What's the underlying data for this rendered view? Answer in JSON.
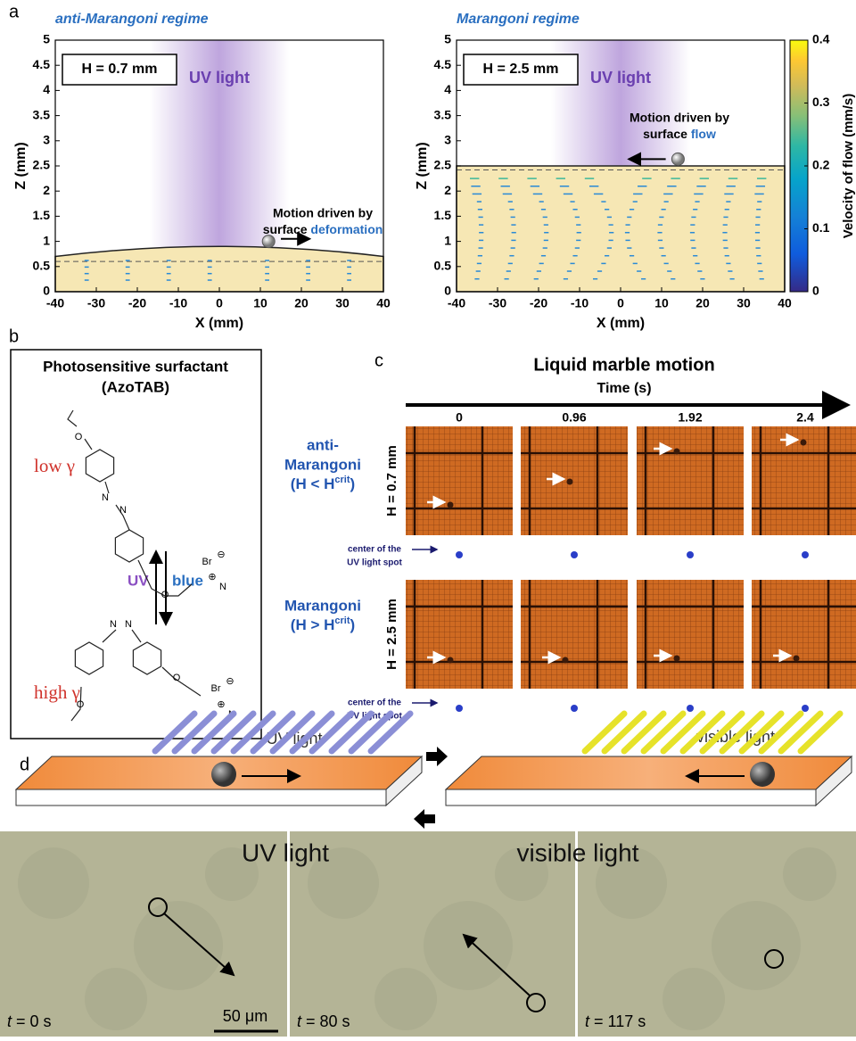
{
  "panel_a": {
    "letter": "a",
    "left": {
      "title": "anti-Marangoni regime",
      "box": "H = 0.7 mm",
      "light": "UV light",
      "note_line1": "Motion driven by",
      "note_line2a": "surface",
      "note_line2b": "deformation",
      "xlabel": "X (mm)",
      "ylabel": "Z (mm)",
      "xlim": [
        -40,
        40
      ],
      "ylim": [
        0,
        5
      ],
      "xticks": [
        -40,
        -30,
        -20,
        -10,
        0,
        10,
        20,
        30,
        40
      ],
      "yticks": [
        0,
        0.5,
        1,
        1.5,
        2,
        2.5,
        3,
        3.5,
        4,
        4.5,
        5
      ]
    },
    "right": {
      "title": "Marangoni regime",
      "box": "H = 2.5 mm",
      "light": "UV light",
      "note_line1": "Motion driven by",
      "note_line2a": "surface",
      "note_line2b": "flow",
      "xlabel": "X (mm)",
      "ylabel": "Z (mm)",
      "xlim": [
        -40,
        40
      ],
      "ylim": [
        0,
        5
      ],
      "xticks": [
        -40,
        -30,
        -20,
        -10,
        0,
        10,
        20,
        30,
        40
      ],
      "yticks": [
        0,
        0.5,
        1,
        1.5,
        2,
        2.5,
        3,
        3.5,
        4,
        4.5,
        5
      ]
    },
    "colorbar": {
      "label": "Velocity of flow (mm/s)",
      "lim": [
        0,
        0.4
      ],
      "ticks": [
        0,
        0.1,
        0.2,
        0.3,
        0.4
      ]
    }
  },
  "panel_b": {
    "letter": "b",
    "title_line1": "Photosensitive surfactant",
    "title_line2": "(AzoTAB)",
    "low": "low γ",
    "high": "high γ",
    "uv": "UV",
    "blue": "blue",
    "top_atoms": [
      "O",
      "N",
      "N",
      "O",
      "Br",
      "⊖",
      "⊕",
      "N"
    ],
    "bottom_atoms": [
      "N",
      "N",
      "O",
      "O",
      "Br",
      "⊖",
      "⊕",
      "N"
    ]
  },
  "panel_c": {
    "letter": "c",
    "title": "Liquid marble motion",
    "axis_label": "Time (s)",
    "times": [
      "0",
      "0.96",
      "1.92",
      "2.4"
    ],
    "rows": [
      {
        "label_lines": [
          "anti-",
          "Marangoni"
        ],
        "cond_a": "(H < H",
        "cond_sup": "crit",
        "cond_b": ")",
        "height": "H = 0.7 mm"
      },
      {
        "label_lines": [
          "Marangoni"
        ],
        "cond_a": "(H > H",
        "cond_sup": "crit",
        "cond_b": ")",
        "height": "H = 2.5 mm"
      }
    ],
    "spot_line1": "center of the",
    "spot_line2": "UV light spot"
  },
  "panel_d": {
    "letter": "d",
    "left_light": "UV light",
    "right_light": "visible light",
    "photo_left": "UV light",
    "photo_right": "visible light",
    "times": [
      {
        "t": "t",
        "rest": " = 0 s"
      },
      {
        "t": "t",
        "rest": " = 80 s"
      },
      {
        "t": "t",
        "rest": " = 117 s"
      }
    ],
    "scale": "50 μm"
  }
}
